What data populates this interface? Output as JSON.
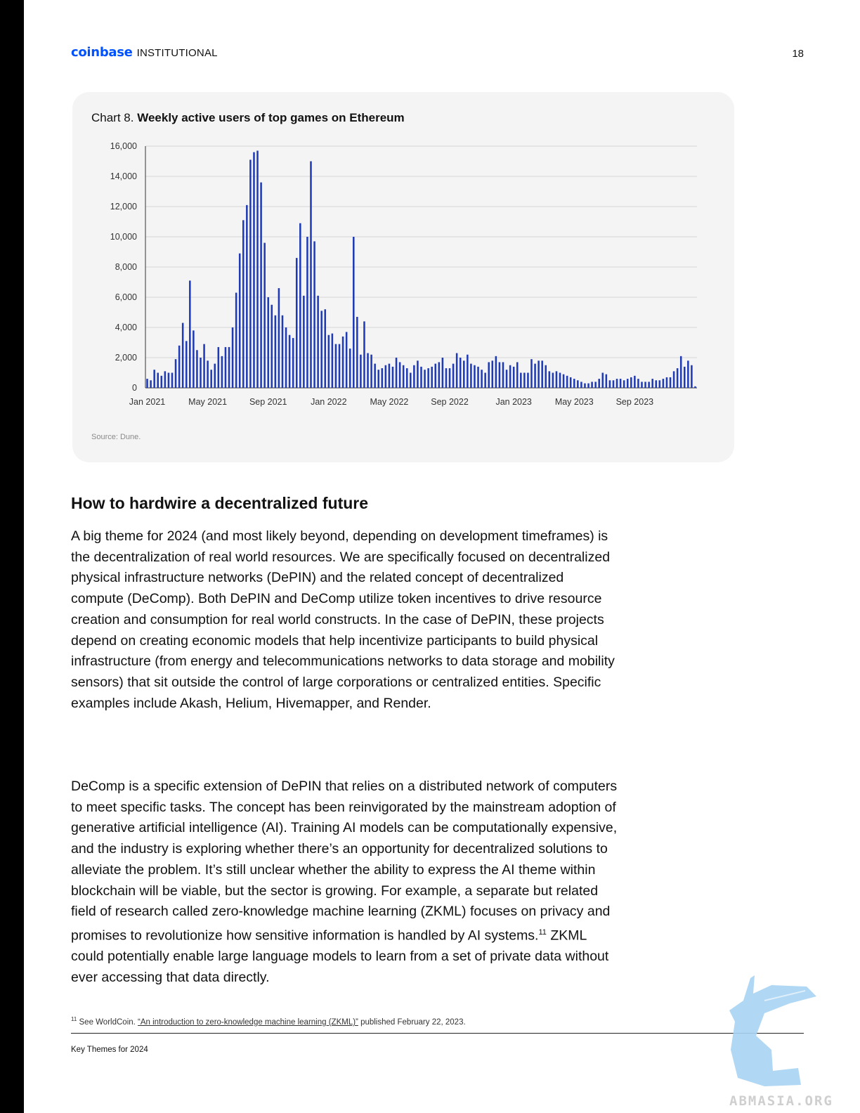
{
  "header": {
    "brand": "coinbase",
    "brand_sub": "INSTITUTIONAL",
    "page_number": "18"
  },
  "chart": {
    "title_prefix": "Chart 8.",
    "title_bold": "Weekly active users of top games on Ethereum",
    "source": "Source: Dune."
  },
  "chart_data": {
    "type": "bar",
    "title": "Weekly active users of top games on Ethereum",
    "xlabel": "",
    "ylabel": "",
    "ylim": [
      0,
      16000
    ],
    "yticks": [
      0,
      2000,
      4000,
      6000,
      8000,
      10000,
      12000,
      14000,
      16000
    ],
    "ytick_labels": [
      "0",
      "2,000",
      "4,000",
      "6,000",
      "8,000",
      "10,000",
      "12,000",
      "14,000",
      "16,000"
    ],
    "xtick_labels": [
      "Jan 2021",
      "May 2021",
      "Sep 2021",
      "Jan 2022",
      "May 2022",
      "Sep 2022",
      "Jan 2023",
      "May 2023",
      "Sep 2023"
    ],
    "xtick_positions": [
      0,
      17,
      34,
      51,
      68,
      85,
      103,
      120,
      137
    ],
    "grid": true,
    "bar_color": "#1f3ab5",
    "values": [
      600,
      500,
      1200,
      1000,
      800,
      1100,
      1000,
      1000,
      1900,
      2800,
      4300,
      3100,
      7100,
      3800,
      2500,
      2000,
      2900,
      1800,
      1200,
      1600,
      2700,
      2100,
      2700,
      2700,
      4000,
      6300,
      8900,
      11100,
      12100,
      15100,
      15600,
      15700,
      13600,
      9600,
      6000,
      5500,
      4800,
      6600,
      4800,
      4000,
      3500,
      3300,
      8600,
      10900,
      6100,
      10000,
      15000,
      9700,
      6100,
      5100,
      5200,
      3500,
      3600,
      2900,
      2900,
      3400,
      3700,
      2600,
      10000,
      4700,
      2200,
      4400,
      2300,
      2200,
      1600,
      1200,
      1300,
      1500,
      1600,
      1400,
      2000,
      1700,
      1500,
      1300,
      1000,
      1500,
      1800,
      1400,
      1200,
      1300,
      1400,
      1600,
      1700,
      2000,
      1300,
      1300,
      1600,
      2300,
      2000,
      1800,
      2200,
      1600,
      1500,
      1400,
      1200,
      1000,
      1700,
      1800,
      2100,
      1700,
      1700,
      1200,
      1500,
      1400,
      1700,
      1000,
      1000,
      1000,
      1900,
      1600,
      1800,
      1800,
      1500,
      1100,
      1000,
      1100,
      1000,
      900,
      800,
      700,
      600,
      500,
      400,
      300,
      300,
      400,
      400,
      600,
      1000,
      900,
      500,
      500,
      600,
      600,
      500,
      600,
      700,
      800,
      600,
      400,
      400,
      400,
      600,
      500,
      500,
      600,
      700,
      700,
      1100,
      1300,
      2100,
      1400,
      1800,
      1500,
      100
    ]
  },
  "section": {
    "heading": "How to hardwire a decentralized future",
    "para1": "A big theme for 2024 (and most likely beyond, depending on development timeframes) is the decentralization of real world resources. We are specifically focused on decentralized physical infrastructure networks (DePIN) and the related concept of decentralized compute (DeComp). Both DePIN and DeComp utilize token incentives to drive resource creation and consumption for real world constructs. In the case of DePIN, these projects depend on creating economic models that help incentivize participants to build physical infrastructure (from energy and telecommunications networks to data storage and mobility sensors) that sit outside the control of large corporations or centralized entities. Specific examples include Akash, Helium, Hivemapper, and Render.",
    "para2_before": "DeComp is a specific extension of DePIN that relies on a distributed network of computers to meet specific tasks. The concept has been reinvigorated by the mainstream adoption of generative artificial intelligence (AI). Training AI models can be computationally expensive, and the industry is exploring whether there’s an opportunity for decentralized solutions to alleviate the problem. It’s still unclear whether the ability to express the AI theme within blockchain will be viable, but the sector is growing. For example, a separate but related field of research called zero-knowledge machine learning (ZKML) focuses on privacy and promises to revolutionize how sensitive information is handled by AI systems.",
    "para2_sup": "11",
    "para2_after": " ZKML could potentially enable large language models to learn from a set of private data without ever accessing that data directly."
  },
  "footnote": {
    "marker": "11",
    "prefix": " See WorldCoin. ",
    "link": "“An introduction to zero-knowledge machine learning (ZKML)”",
    "suffix": " published February 22, 2023."
  },
  "footer": {
    "text": "Key Themes for 2024"
  },
  "watermark": {
    "text": "ABMASIA.ORG"
  }
}
